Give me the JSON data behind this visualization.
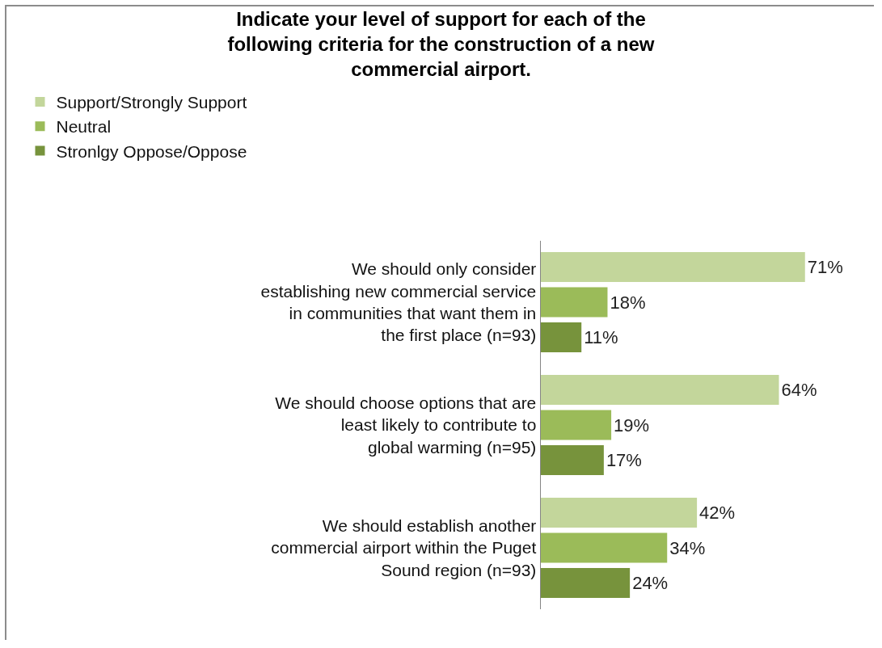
{
  "chart_data": {
    "type": "bar",
    "orientation": "horizontal",
    "title": "Indicate your level of support for each of the following criteria for the construction of a new commercial airport.",
    "categories": [
      "We should only consider establishing new commercial service in communities that want them in the first place (n=93)",
      "We should choose options that are least likely to contribute to global warming (n=95)",
      "We should establish another commercial airport within the Puget Sound region (n=93)"
    ],
    "series": [
      {
        "name": "Support/Strongly Support",
        "color": "#c3d69b",
        "values": [
          71,
          64,
          42
        ],
        "value_labels": [
          "71%",
          "64%",
          "42%"
        ]
      },
      {
        "name": "Neutral",
        "color": "#9bbb59",
        "values": [
          18,
          19,
          34
        ],
        "value_labels": [
          "18%",
          "19%",
          "34%"
        ]
      },
      {
        "name": "Stronlgy Oppose/Oppose",
        "color": "#77933c",
        "values": [
          11,
          17,
          24
        ],
        "value_labels": [
          "11%",
          "17%",
          "24%"
        ]
      }
    ],
    "legend": "top",
    "grid": false
  }
}
